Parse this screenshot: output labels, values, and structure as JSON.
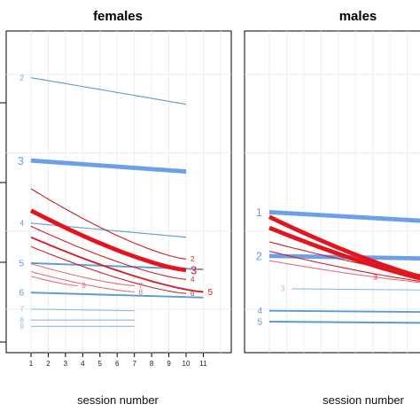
{
  "chart_data": [
    {
      "type": "line",
      "title": "females",
      "xlabel": "session number",
      "ylabel": "",
      "xlim": [
        0.2,
        12.5
      ],
      "ylim": [
        0,
        1
      ],
      "x_ticks": [
        1,
        2,
        3,
        4,
        5,
        6,
        7,
        8,
        9,
        10,
        11
      ],
      "grid": true,
      "legend": "none",
      "series": [
        {
          "name": "2",
          "group": "blue",
          "weight": "thin",
          "x": [
            1,
            10
          ],
          "y": [
            0.865,
            0.78
          ],
          "label_at": "start",
          "color": "#5b9bd5"
        },
        {
          "name": "3",
          "group": "blue",
          "weight": "thick",
          "x": [
            1,
            10
          ],
          "y": [
            0.6,
            0.565
          ],
          "label_at": "start",
          "color": "#6aa0e8"
        },
        {
          "name": "4",
          "group": "blue",
          "weight": "thin",
          "x": [
            1,
            10
          ],
          "y": [
            0.4,
            0.355
          ],
          "label_at": "start",
          "color": "#5b9bd5"
        },
        {
          "name": "5",
          "group": "blue",
          "weight": "medium",
          "x": [
            1,
            11
          ],
          "y": [
            0.272,
            0.252
          ],
          "label_at": "start",
          "color": "#5b9bd5"
        },
        {
          "name": "6",
          "group": "blue",
          "weight": "medium",
          "x": [
            1,
            11
          ],
          "y": [
            0.178,
            0.162
          ],
          "label_at": "start",
          "color": "#5b9bd5"
        },
        {
          "name": "7",
          "group": "blue",
          "weight": "thin",
          "x": [
            1,
            7
          ],
          "y": [
            0.125,
            0.12
          ],
          "label_at": "start",
          "color": "#8fb8e8"
        },
        {
          "name": "8",
          "group": "blue",
          "weight": "thin",
          "x": [
            1,
            7
          ],
          "y": [
            0.09,
            0.09
          ],
          "label_at": "start",
          "color": "#8fb8e8"
        },
        {
          "name": "9",
          "group": "blue",
          "weight": "thin",
          "x": [
            1,
            7
          ],
          "y": [
            0.07,
            0.07
          ],
          "label_at": "start",
          "color": "#8fb8e8"
        },
        {
          "name": "2",
          "group": "red",
          "weight": "thin",
          "x": [
            1,
            10
          ],
          "y": [
            0.51,
            0.285
          ],
          "label_at": "end",
          "color": "#cc1f2a"
        },
        {
          "name": "3",
          "group": "red",
          "weight": "thick",
          "x": [
            1,
            10
          ],
          "y": [
            0.44,
            0.25
          ],
          "label_at": "end",
          "color": "#e3141c"
        },
        {
          "name": "4",
          "group": "red",
          "weight": "thin",
          "x": [
            1,
            10
          ],
          "y": [
            0.39,
            0.22
          ],
          "label_at": "end",
          "color": "#cc1f2a"
        },
        {
          "name": "5",
          "group": "red",
          "weight": "medium",
          "x": [
            1,
            11
          ],
          "y": [
            0.355,
            0.18
          ],
          "label_at": "end",
          "color": "#d21f2a"
        },
        {
          "name": "6",
          "group": "red",
          "weight": "thin",
          "x": [
            1,
            10
          ],
          "y": [
            0.325,
            0.175
          ],
          "label_at": "end",
          "color": "#cc1f2a"
        },
        {
          "name": "7",
          "group": "red",
          "weight": "thin",
          "x": [
            1,
            7
          ],
          "y": [
            0.27,
            0.2
          ],
          "label_at": "end",
          "color": "#e07080"
        },
        {
          "name": "8",
          "group": "red",
          "weight": "thin",
          "x": [
            1,
            7
          ],
          "y": [
            0.245,
            0.18
          ],
          "label_at": "end",
          "color": "#e07080"
        },
        {
          "name": "9",
          "group": "red",
          "weight": "thin",
          "x": [
            1,
            3.7
          ],
          "y": [
            0.23,
            0.2
          ],
          "label_at": "end",
          "color": "#e07080"
        }
      ]
    },
    {
      "type": "line",
      "title": "males",
      "xlabel": "session number",
      "ylabel": "",
      "xlim": [
        0.2,
        12.5
      ],
      "ylim": [
        0,
        1
      ],
      "grid": true,
      "legend": "none",
      "series": [
        {
          "name": "1",
          "group": "blue",
          "weight": "thick",
          "x": [
            1,
            12.2
          ],
          "y": [
            0.435,
            0.4
          ],
          "label_at": "start",
          "color": "#6aa0e8"
        },
        {
          "name": "2",
          "group": "blue",
          "weight": "thick",
          "x": [
            1,
            12.2
          ],
          "y": [
            0.295,
            0.285
          ],
          "label_at": "start",
          "color": "#6aa0e8"
        },
        {
          "name": "3",
          "group": "blue",
          "weight": "thin",
          "x": [
            2.3,
            12.2
          ],
          "y": [
            0.19,
            0.185
          ],
          "label_at": "start",
          "color": "#8fb8e8"
        },
        {
          "name": "4",
          "group": "blue",
          "weight": "medium",
          "x": [
            1,
            12.2
          ],
          "y": [
            0.12,
            0.115
          ],
          "label_at": "start",
          "color": "#5b9bd5"
        },
        {
          "name": "5",
          "group": "blue",
          "weight": "medium",
          "x": [
            1,
            12.2
          ],
          "y": [
            0.085,
            0.08
          ],
          "label_at": "start",
          "color": "#5b9bd5"
        },
        {
          "name": "1",
          "group": "red",
          "weight": "thick",
          "x": [
            1,
            12.2
          ],
          "y": [
            0.42,
            0.2
          ],
          "label_at": "none",
          "color": "#e3141c"
        },
        {
          "name": "2",
          "group": "red",
          "weight": "thick",
          "x": [
            1,
            12.2
          ],
          "y": [
            0.385,
            0.2
          ],
          "label_at": "none",
          "color": "#e3141c"
        },
        {
          "name": "3",
          "group": "red",
          "weight": "thin",
          "x": [
            1,
            12.2
          ],
          "y": [
            0.31,
            0.2
          ],
          "label_at": "mid",
          "color": "#cc1f2a"
        },
        {
          "name": "4",
          "group": "red",
          "weight": "thin",
          "x": [
            1,
            12.2
          ],
          "y": [
            0.34,
            0.22
          ],
          "label_at": "none",
          "color": "#cc1f2a"
        },
        {
          "name": "5",
          "group": "red",
          "weight": "thin",
          "x": [
            1,
            12.2
          ],
          "y": [
            0.28,
            0.2
          ],
          "label_at": "none",
          "color": "#e07080"
        }
      ]
    }
  ]
}
